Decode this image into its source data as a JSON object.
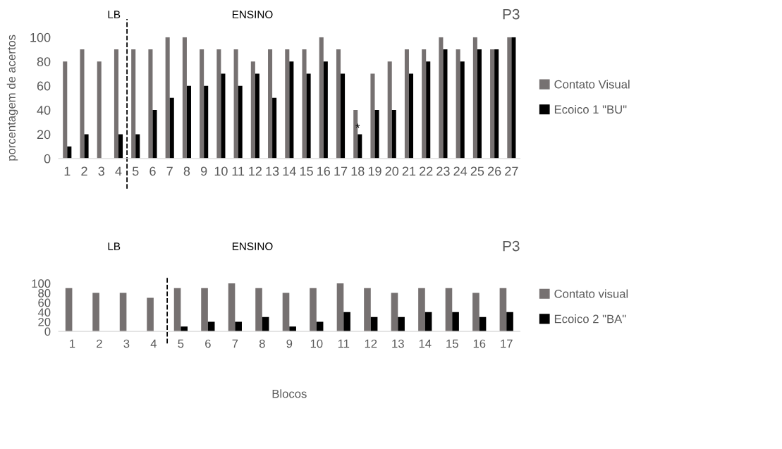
{
  "chart_data": [
    {
      "type": "bar",
      "title": "P3",
      "ylabel": "porcentagem de acertos",
      "x": [
        1,
        2,
        3,
        4,
        5,
        6,
        7,
        8,
        9,
        10,
        11,
        12,
        13,
        14,
        15,
        16,
        17,
        18,
        19,
        20,
        21,
        22,
        23,
        24,
        25,
        26,
        27
      ],
      "xlim": [
        0.5,
        27.5
      ],
      "xticks": [
        1,
        2,
        3,
        4,
        5,
        6,
        7,
        8,
        9,
        10,
        11,
        12,
        13,
        14,
        15,
        16,
        17,
        18,
        19,
        20,
        21,
        22,
        23,
        24,
        25,
        26,
        27
      ],
      "ylim": [
        0,
        100
      ],
      "yticks": [
        0,
        20,
        40,
        60,
        80,
        100
      ],
      "grid": false,
      "legend": "right",
      "series": [
        {
          "name": "Contato Visual",
          "color": "#767171",
          "values": [
            80,
            90,
            80,
            90,
            90,
            90,
            100,
            100,
            90,
            90,
            90,
            80,
            90,
            90,
            90,
            100,
            90,
            40,
            70,
            80,
            90,
            90,
            100,
            90,
            100,
            90,
            100
          ]
        },
        {
          "name": "Ecoico 1 \"BU\"",
          "color": "#000000",
          "values": [
            10,
            20,
            0,
            20,
            20,
            40,
            50,
            60,
            60,
            70,
            60,
            70,
            50,
            80,
            70,
            80,
            70,
            20,
            40,
            40,
            70,
            80,
            90,
            80,
            90,
            90,
            100
          ]
        }
      ],
      "ref_lines": [
        {
          "axis": "x",
          "value": 4.5,
          "color": "#000000",
          "line_style": "dashed"
        }
      ],
      "annotations": [
        "LB",
        "ENSINO",
        {
          "text": "*",
          "x": 18,
          "y": 20
        }
      ]
    },
    {
      "type": "bar",
      "title": "P3",
      "xlabel": "Blocos",
      "x": [
        1,
        2,
        3,
        4,
        5,
        6,
        7,
        8,
        9,
        10,
        11,
        12,
        13,
        14,
        15,
        16,
        17
      ],
      "xlim": [
        0.5,
        17.5
      ],
      "xticks": [
        1,
        2,
        3,
        4,
        5,
        6,
        7,
        8,
        9,
        10,
        11,
        12,
        13,
        14,
        15,
        16,
        17
      ],
      "ylim": [
        0,
        100
      ],
      "yticks": [
        0,
        20,
        40,
        60,
        80,
        100
      ],
      "grid": false,
      "legend": "right",
      "series": [
        {
          "name": "Contato visual",
          "color": "#767171",
          "values": [
            90,
            80,
            80,
            70,
            90,
            90,
            100,
            90,
            80,
            90,
            100,
            90,
            80,
            90,
            90,
            80,
            90
          ]
        },
        {
          "name": "Ecoico 2 \"BA\"",
          "color": "#000000",
          "values": [
            0,
            0,
            0,
            0,
            10,
            20,
            20,
            30,
            10,
            20,
            40,
            30,
            30,
            40,
            40,
            30,
            40
          ]
        }
      ],
      "ref_lines": [
        {
          "axis": "x",
          "value": 4.5,
          "color": "#000000",
          "line_style": "dashed"
        }
      ],
      "annotations": [
        "LB",
        "ENSINO"
      ]
    }
  ]
}
